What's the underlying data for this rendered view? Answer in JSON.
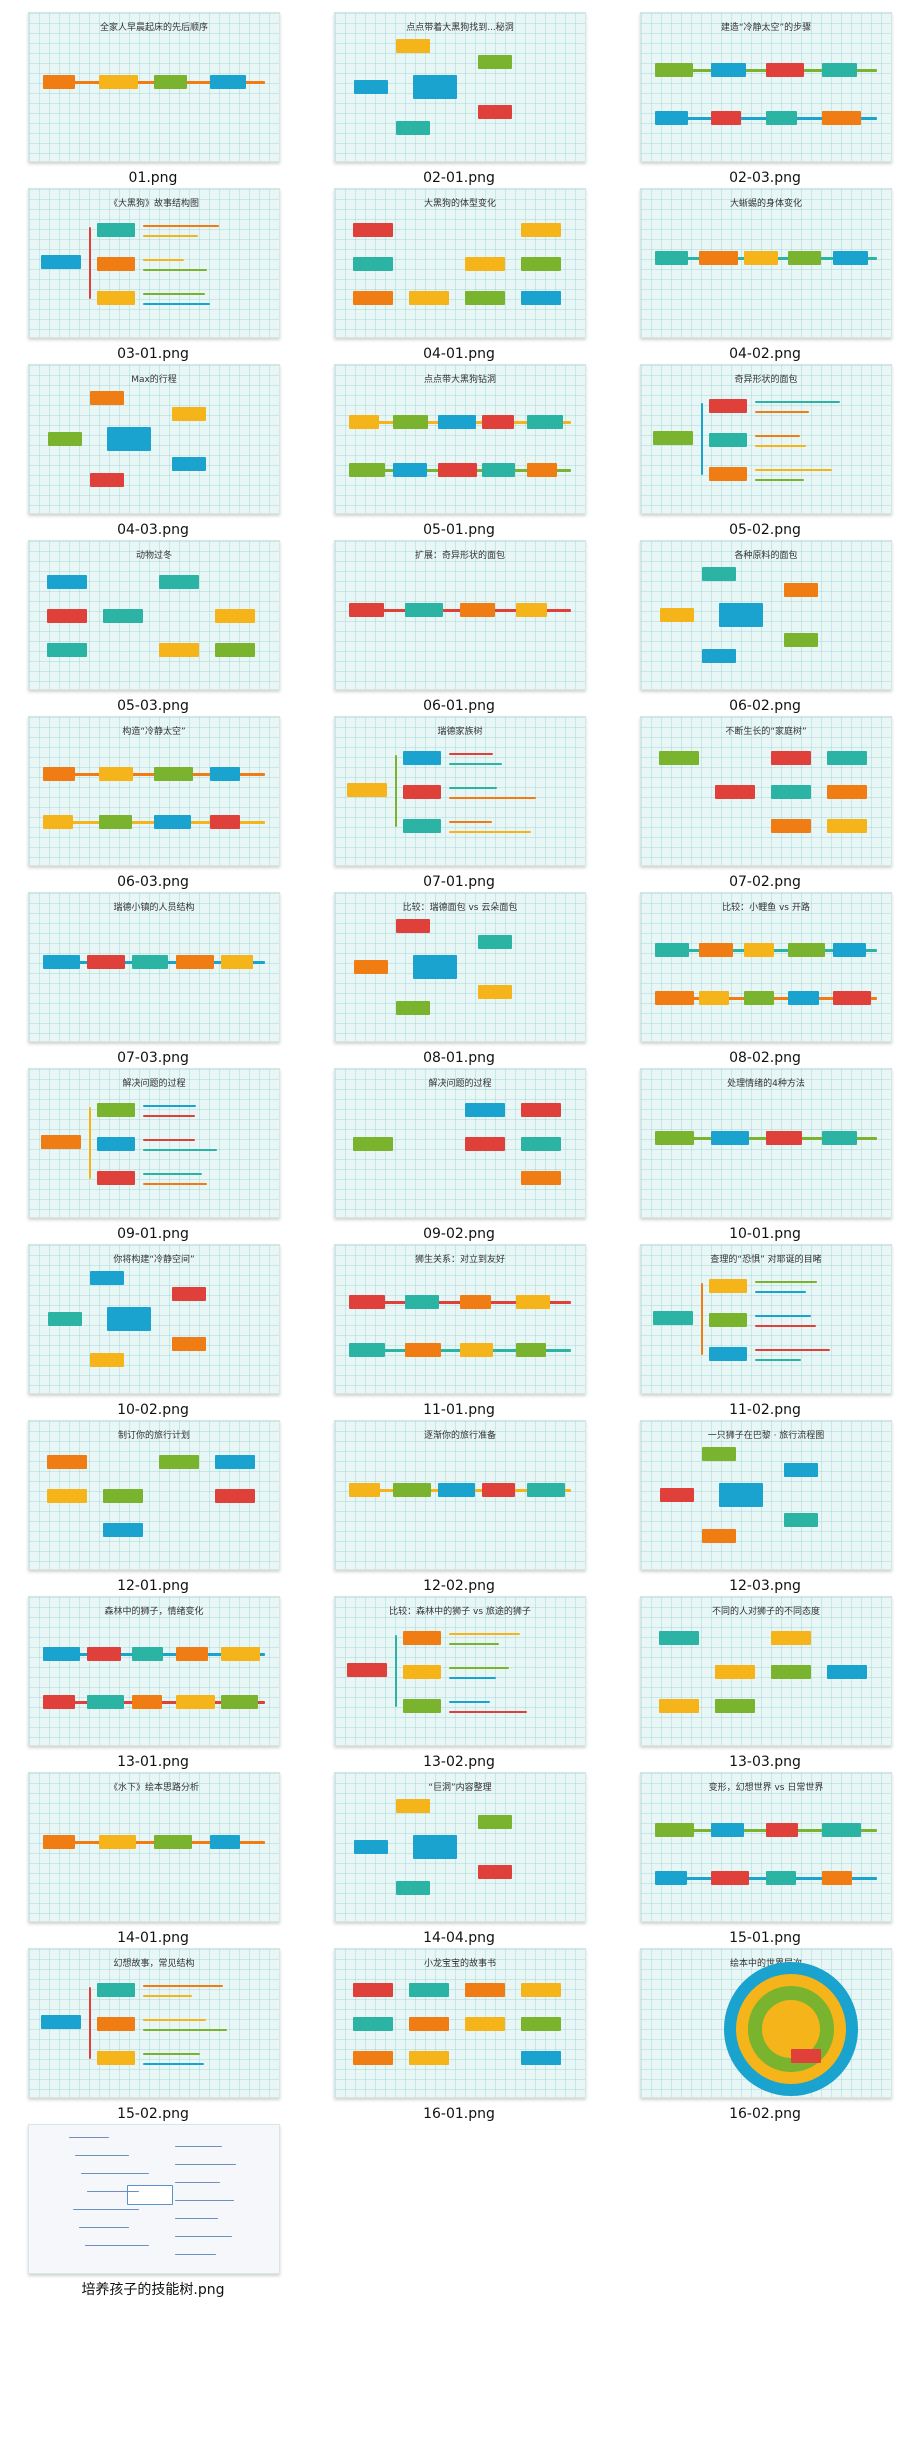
{
  "tiles": [
    {
      "file": "01.png",
      "title": "全家人早晨起床的先后顺序"
    },
    {
      "file": "02-01.png",
      "title": "点点带着大黑狗找到...秘洞"
    },
    {
      "file": "02-03.png",
      "title": "建造“冷静太空”的步骤"
    },
    {
      "file": "03-01.png",
      "title": "《大黑狗》故事结构图"
    },
    {
      "file": "04-01.png",
      "title": "大黑狗的体型变化"
    },
    {
      "file": "04-02.png",
      "title": "大蜥蜴的身体变化"
    },
    {
      "file": "04-03.png",
      "title": "Max的行程"
    },
    {
      "file": "05-01.png",
      "title": "点点带大黑狗钻洞"
    },
    {
      "file": "05-02.png",
      "title": "奇异形状的面包"
    },
    {
      "file": "05-03.png",
      "title": "动物过冬"
    },
    {
      "file": "06-01.png",
      "title": "扩展：奇异形状的面包"
    },
    {
      "file": "06-02.png",
      "title": "各种原料的面包"
    },
    {
      "file": "06-03.png",
      "title": "构造“冷静太空”"
    },
    {
      "file": "07-01.png",
      "title": "瑞德家族树"
    },
    {
      "file": "07-02.png",
      "title": "不断生长的“家庭树”"
    },
    {
      "file": "07-03.png",
      "title": "瑞德小镇的人员结构"
    },
    {
      "file": "08-01.png",
      "title": "比较：瑞德面包 vs 云朵面包"
    },
    {
      "file": "08-02.png",
      "title": "比较：小鲤鱼 vs 开路"
    },
    {
      "file": "09-01.png",
      "title": "解决问题的过程"
    },
    {
      "file": "09-02.png",
      "title": "解决问题的过程"
    },
    {
      "file": "10-01.png",
      "title": "处理情绪的4种方法"
    },
    {
      "file": "10-02.png",
      "title": "你将构建“冷静空间”"
    },
    {
      "file": "11-01.png",
      "title": "狮生关系：对立到友好"
    },
    {
      "file": "11-02.png",
      "title": "查理的“恐惧”    对耶诞的目睹"
    },
    {
      "file": "12-01.png",
      "title": "制订你的旅行计划"
    },
    {
      "file": "12-02.png",
      "title": "逐渐你的旅行准备"
    },
    {
      "file": "12-03.png",
      "title": "一只狮子在巴黎 · 旅行流程图"
    },
    {
      "file": "13-01.png",
      "title": "森林中的狮子，情绪变化"
    },
    {
      "file": "13-02.png",
      "title": "比较：森林中的狮子 vs 旅途的狮子"
    },
    {
      "file": "13-03.png",
      "title": "不同的人对狮子的不同态度"
    },
    {
      "file": "14-01.png",
      "title": "《水下》绘本思路分析"
    },
    {
      "file": "14-04.png",
      "title": "“巨洞”内容整理"
    },
    {
      "file": "15-01.png",
      "title": "变形，幻想世界 vs 日常世界"
    },
    {
      "file": "15-02.png",
      "title": "幻想故事，常见结构"
    },
    {
      "file": "16-01.png",
      "title": "小龙宝宝的故事书"
    },
    {
      "file": "16-02.png",
      "title": "绘本中的世界层次"
    },
    {
      "file": "培养孩子的技能树.png",
      "title": ""
    }
  ],
  "colors": {
    "orange": "#ef7d14",
    "yellow": "#f4b41a",
    "green": "#7ab32e",
    "blue": "#1aa3cf",
    "red": "#e0403a",
    "teal": "#2bb3a3",
    "grid_bg": "#e8f6f5"
  }
}
